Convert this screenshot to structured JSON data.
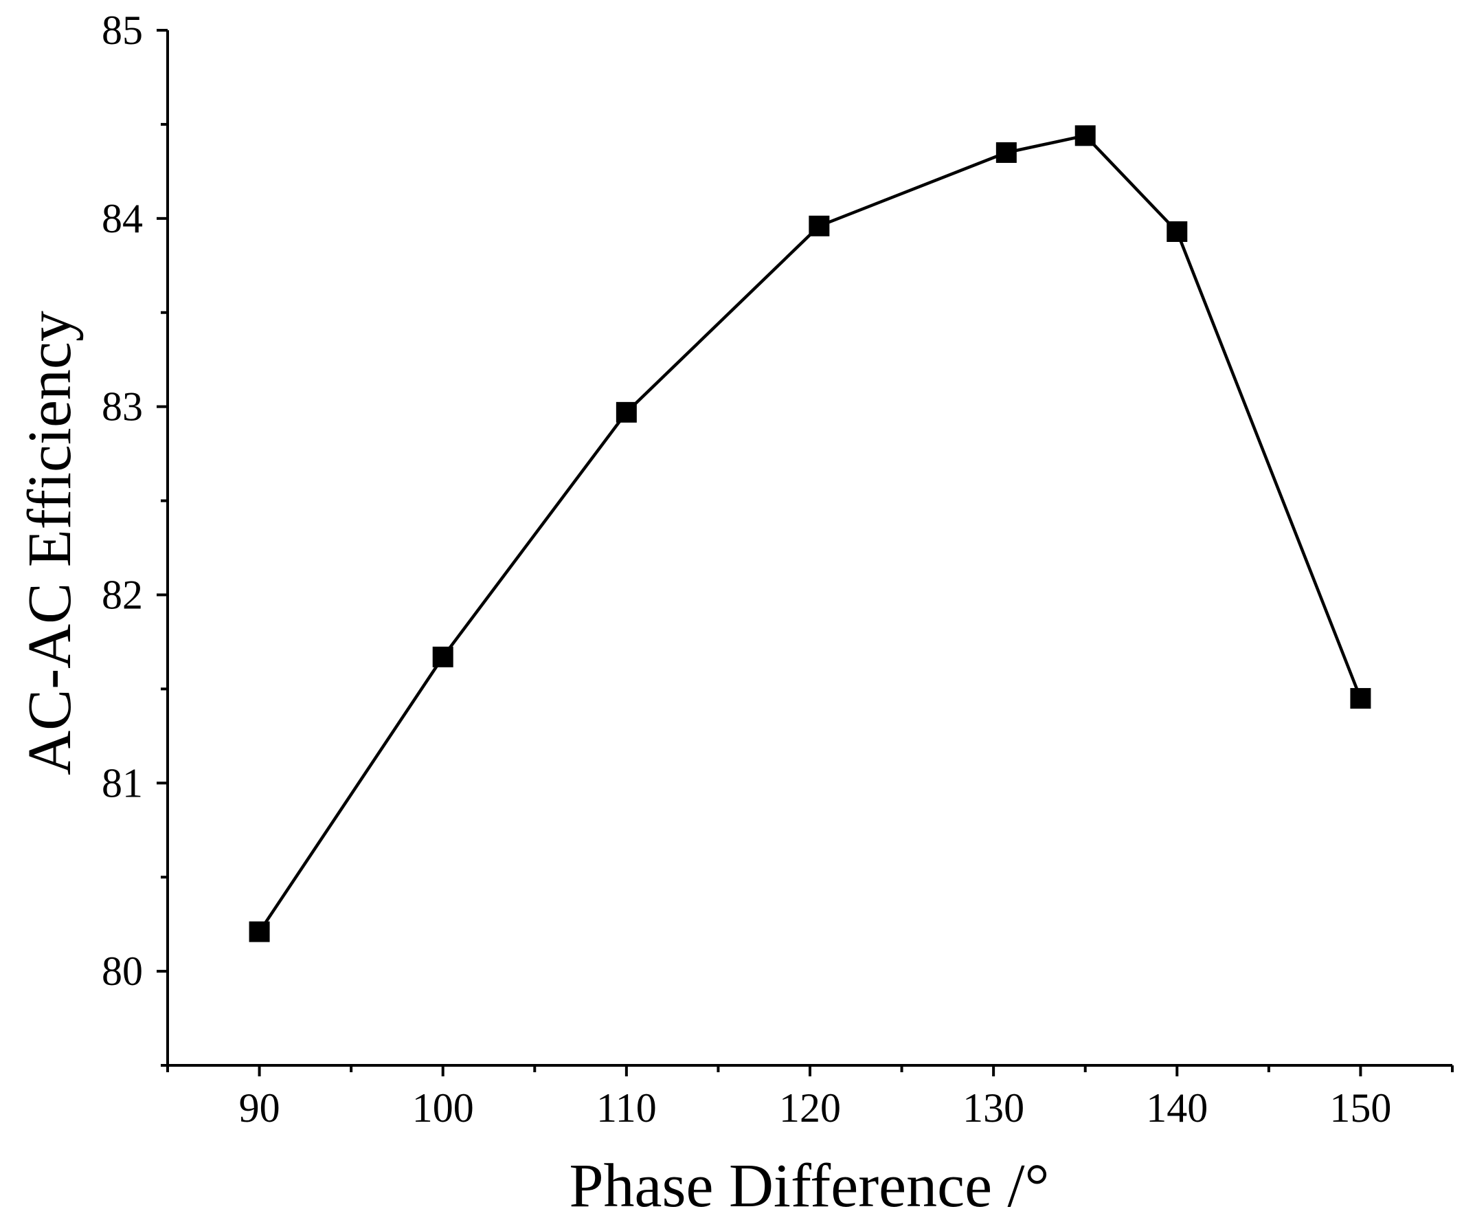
{
  "chart_data": {
    "type": "line",
    "title": "",
    "xlabel": "Phase Difference /°",
    "ylabel": "AC-AC Efficiency",
    "xlim": [
      85,
      155
    ],
    "ylim": [
      79.5,
      85
    ],
    "x_ticks": [
      90,
      100,
      110,
      120,
      130,
      140,
      150
    ],
    "x_tick_labels": [
      "90",
      "100",
      "110",
      "120",
      "130",
      "140",
      "150"
    ],
    "x_minor_ticks": [
      85,
      95,
      105,
      115,
      125,
      135,
      145,
      155
    ],
    "y_ticks": [
      80,
      81,
      82,
      83,
      84,
      85
    ],
    "y_tick_labels": [
      "80",
      "81",
      "82",
      "83",
      "84",
      "85"
    ],
    "y_minor_ticks": [
      79.5,
      80.5,
      81.5,
      82.5,
      83.5,
      84.5
    ],
    "grid": false,
    "legend": "none",
    "marker": "square",
    "series": [
      {
        "name": "AC-AC Efficiency",
        "x": [
          90,
          100,
          110,
          120.5,
          130.7,
          135,
          140,
          150
        ],
        "y": [
          80.21,
          81.67,
          82.97,
          83.96,
          84.35,
          84.44,
          83.93,
          81.45
        ]
      }
    ]
  }
}
